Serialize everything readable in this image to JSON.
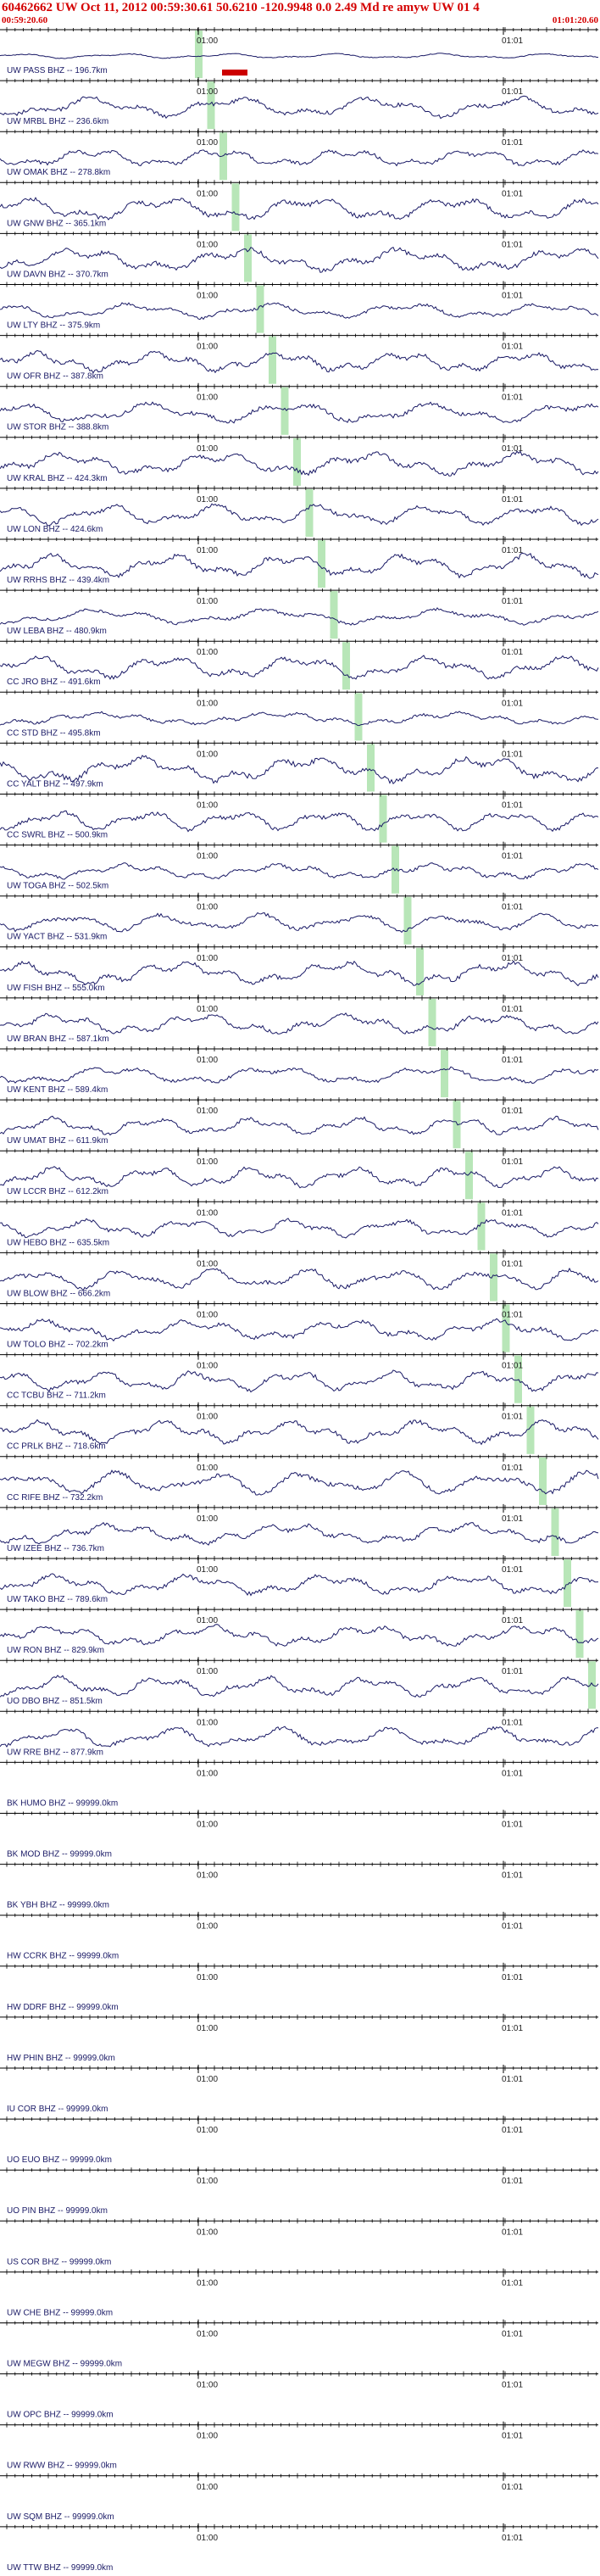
{
  "header": {
    "title": "60462662 UW Oct 11, 2012 00:59:30.61    50.6210 -120.9948  0.0 2.49 Md re amyw UW 01    4",
    "start_time": "00:59:20.60",
    "end_time": "01:01:20.60"
  },
  "tick_labels": {
    "first": "01:00",
    "second": "01:01"
  },
  "colors": {
    "trace": "#1a1a66",
    "pick": "#b8e6b8",
    "header_text": "#d40000",
    "red_marker": "#cc0000",
    "axis": "#000000"
  },
  "stations": [
    {
      "label": "UW PASS BHZ -- 196.7km",
      "amp": 0.2
    },
    {
      "label": "UW MRBL BHZ -- 236.6km",
      "amp": 0.8
    },
    {
      "label": "UW OMAK BHZ -- 278.8km",
      "amp": 0.7
    },
    {
      "label": "UW GNW BHZ -- 365.1km",
      "amp": 0.9
    },
    {
      "label": "UW DAVN BHZ -- 370.7km",
      "amp": 0.9
    },
    {
      "label": "UW LTY BHZ -- 375.9km",
      "amp": 0.6
    },
    {
      "label": "UW OFR BHZ -- 387.8km",
      "amp": 0.8
    },
    {
      "label": "UW STOR BHZ -- 388.8km",
      "amp": 0.8
    },
    {
      "label": "UW KRAL BHZ -- 424.3km",
      "amp": 0.9
    },
    {
      "label": "UW LON BHZ -- 424.6km",
      "amp": 0.8
    },
    {
      "label": "UW RRHS BHZ -- 439.4km",
      "amp": 0.9
    },
    {
      "label": "UW LEBA BHZ -- 480.9km",
      "amp": 0.6
    },
    {
      "label": "CC JRO BHZ -- 491.6km",
      "amp": 0.9
    },
    {
      "label": "CC STD BHZ -- 495.8km",
      "amp": 0.5
    },
    {
      "label": "CC YALT BHZ -- 497.9km",
      "amp": 1.0
    },
    {
      "label": "CC SWRL BHZ -- 500.9km",
      "amp": 0.8
    },
    {
      "label": "UW TOGA BHZ -- 502.5km",
      "amp": 0.6
    },
    {
      "label": "UW YACT BHZ -- 531.9km",
      "amp": 0.7
    },
    {
      "label": "UW FISH BHZ -- 555.0km",
      "amp": 0.9
    },
    {
      "label": "UW BRAN BHZ -- 587.1km",
      "amp": 0.8
    },
    {
      "label": "UW KENT BHZ -- 589.4km",
      "amp": 0.7
    },
    {
      "label": "UW UMAT BHZ -- 611.9km",
      "amp": 0.7
    },
    {
      "label": "UW LCCR BHZ -- 612.2km",
      "amp": 0.8
    },
    {
      "label": "UW HEBO BHZ -- 635.5km",
      "amp": 0.7
    },
    {
      "label": "UW BLOW BHZ -- 666.2km",
      "amp": 0.8
    },
    {
      "label": "UW TOLO BHZ -- 702.2km",
      "amp": 0.8
    },
    {
      "label": "CC TCBU BHZ -- 711.2km",
      "amp": 0.8
    },
    {
      "label": "CC PRLK BHZ -- 718.6km",
      "amp": 0.9
    },
    {
      "label": "CC RIFE BHZ -- 732.2km",
      "amp": 0.9
    },
    {
      "label": "UW IZEE BHZ -- 736.7km",
      "amp": 0.8
    },
    {
      "label": "UW TAKO BHZ -- 789.6km",
      "amp": 0.8
    },
    {
      "label": "UW RON BHZ -- 829.9km",
      "amp": 0.8
    },
    {
      "label": "UO DBO BHZ -- 851.5km",
      "amp": 0.8
    },
    {
      "label": "UW RRE BHZ -- 877.9km",
      "amp": 0.8
    },
    {
      "label": "BK HUMO BHZ -- 99999.0km",
      "amp": 0
    },
    {
      "label": "BK MOD BHZ -- 99999.0km",
      "amp": 0
    },
    {
      "label": "BK YBH BHZ -- 99999.0km",
      "amp": 0
    },
    {
      "label": "HW CCRK BHZ -- 99999.0km",
      "amp": 0
    },
    {
      "label": "HW DDRF BHZ -- 99999.0km",
      "amp": 0
    },
    {
      "label": "HW PHIN BHZ -- 99999.0km",
      "amp": 0
    },
    {
      "label": "IU COR BHZ -- 99999.0km",
      "amp": 0
    },
    {
      "label": "UO EUO BHZ -- 99999.0km",
      "amp": 0
    },
    {
      "label": "UO PIN BHZ -- 99999.0km",
      "amp": 0
    },
    {
      "label": "US COR BHZ -- 99999.0km",
      "amp": 0
    },
    {
      "label": "UW CHE BHZ -- 99999.0km",
      "amp": 0
    },
    {
      "label": "UW MEGW BHZ -- 99999.0km",
      "amp": 0
    },
    {
      "label": "UW OPC BHZ -- 99999.0km",
      "amp": 0
    },
    {
      "label": "UW RWW BHZ -- 99999.0km",
      "amp": 0
    },
    {
      "label": "UW SQM BHZ -- 99999.0km",
      "amp": 0
    },
    {
      "label": "UW TTW BHZ -- 99999.0km",
      "amp": 0
    }
  ]
}
